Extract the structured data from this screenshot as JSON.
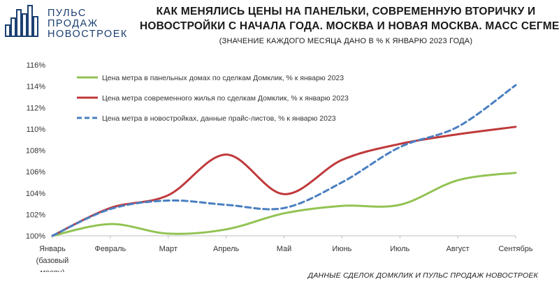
{
  "logo": {
    "lines": [
      "ПУЛЬС",
      "ПРОДАЖ",
      "НОВОСТРОЕК"
    ]
  },
  "header": {
    "title_lines": [
      "КАК МЕНЯЛИСЬ ЦЕНЫ НА ПАНЕЛЬКИ, СОВРЕМЕННУЮ ВТОРИЧКУ И",
      "НОВОСТРОЙКИ С НАЧАЛА ГОДА. МОСКВА И НОВАЯ МОСКВА. МАСС СЕГМЕНТ"
    ],
    "subtitle": "(ЗНАЧЕНИЕ КАЖДОГО МЕСЯЦА ДАНО В % К ЯНВАРЮ 2023 ГОДА)"
  },
  "source": "ДАННЫЕ СДЕЛОК ДОМКЛИК И ПУЛЬС ПРОДАЖ НОВОСТРОЕК",
  "colors": {
    "green": "#92c353",
    "red": "#c0393b",
    "blue": "#4a7fc1",
    "logo": "#1b3f72"
  },
  "chart_data": {
    "type": "line",
    "categories": [
      "Январь (базовый месяц)",
      "Февраль",
      "Март",
      "Апрель",
      "Май",
      "Июнь",
      "Июль",
      "Август",
      "Сентябрь"
    ],
    "category_tick_lines": [
      [
        "Январь",
        "(базовый",
        "месяц)"
      ],
      [
        "Февраль"
      ],
      [
        "Март"
      ],
      [
        "Апрель"
      ],
      [
        "Май"
      ],
      [
        "Июнь"
      ],
      [
        "Июль"
      ],
      [
        "Август"
      ],
      [
        "Сентябрь"
      ]
    ],
    "y_ticks": [
      "100%",
      "102%",
      "104%",
      "106%",
      "108%",
      "110%",
      "112%",
      "114%",
      "116%"
    ],
    "ylim": [
      100,
      116
    ],
    "grid": false,
    "legend_position": "top-left",
    "series": [
      {
        "name": "Цена метра в панельных домах по сделкам Домклик, % к январю 2023",
        "color": "#92c353",
        "style": "solid",
        "values": [
          100,
          101.1,
          100.2,
          100.6,
          102.1,
          102.8,
          102.9,
          105.2,
          105.9
        ]
      },
      {
        "name": "Цена метра современного жилья по сделкам Домклик, % к январю 2023",
        "color": "#c0393b",
        "style": "solid",
        "values": [
          100,
          102.6,
          103.8,
          107.6,
          103.9,
          107.1,
          108.6,
          109.5,
          110.2
        ]
      },
      {
        "name": "Цена метра в новостройках, данные прайс-листов, % к январю 2023",
        "color": "#4a7fc1",
        "style": "dashed",
        "values": [
          100,
          102.5,
          103.3,
          102.9,
          102.6,
          105.0,
          108.3,
          110.2,
          114.1
        ]
      }
    ]
  }
}
